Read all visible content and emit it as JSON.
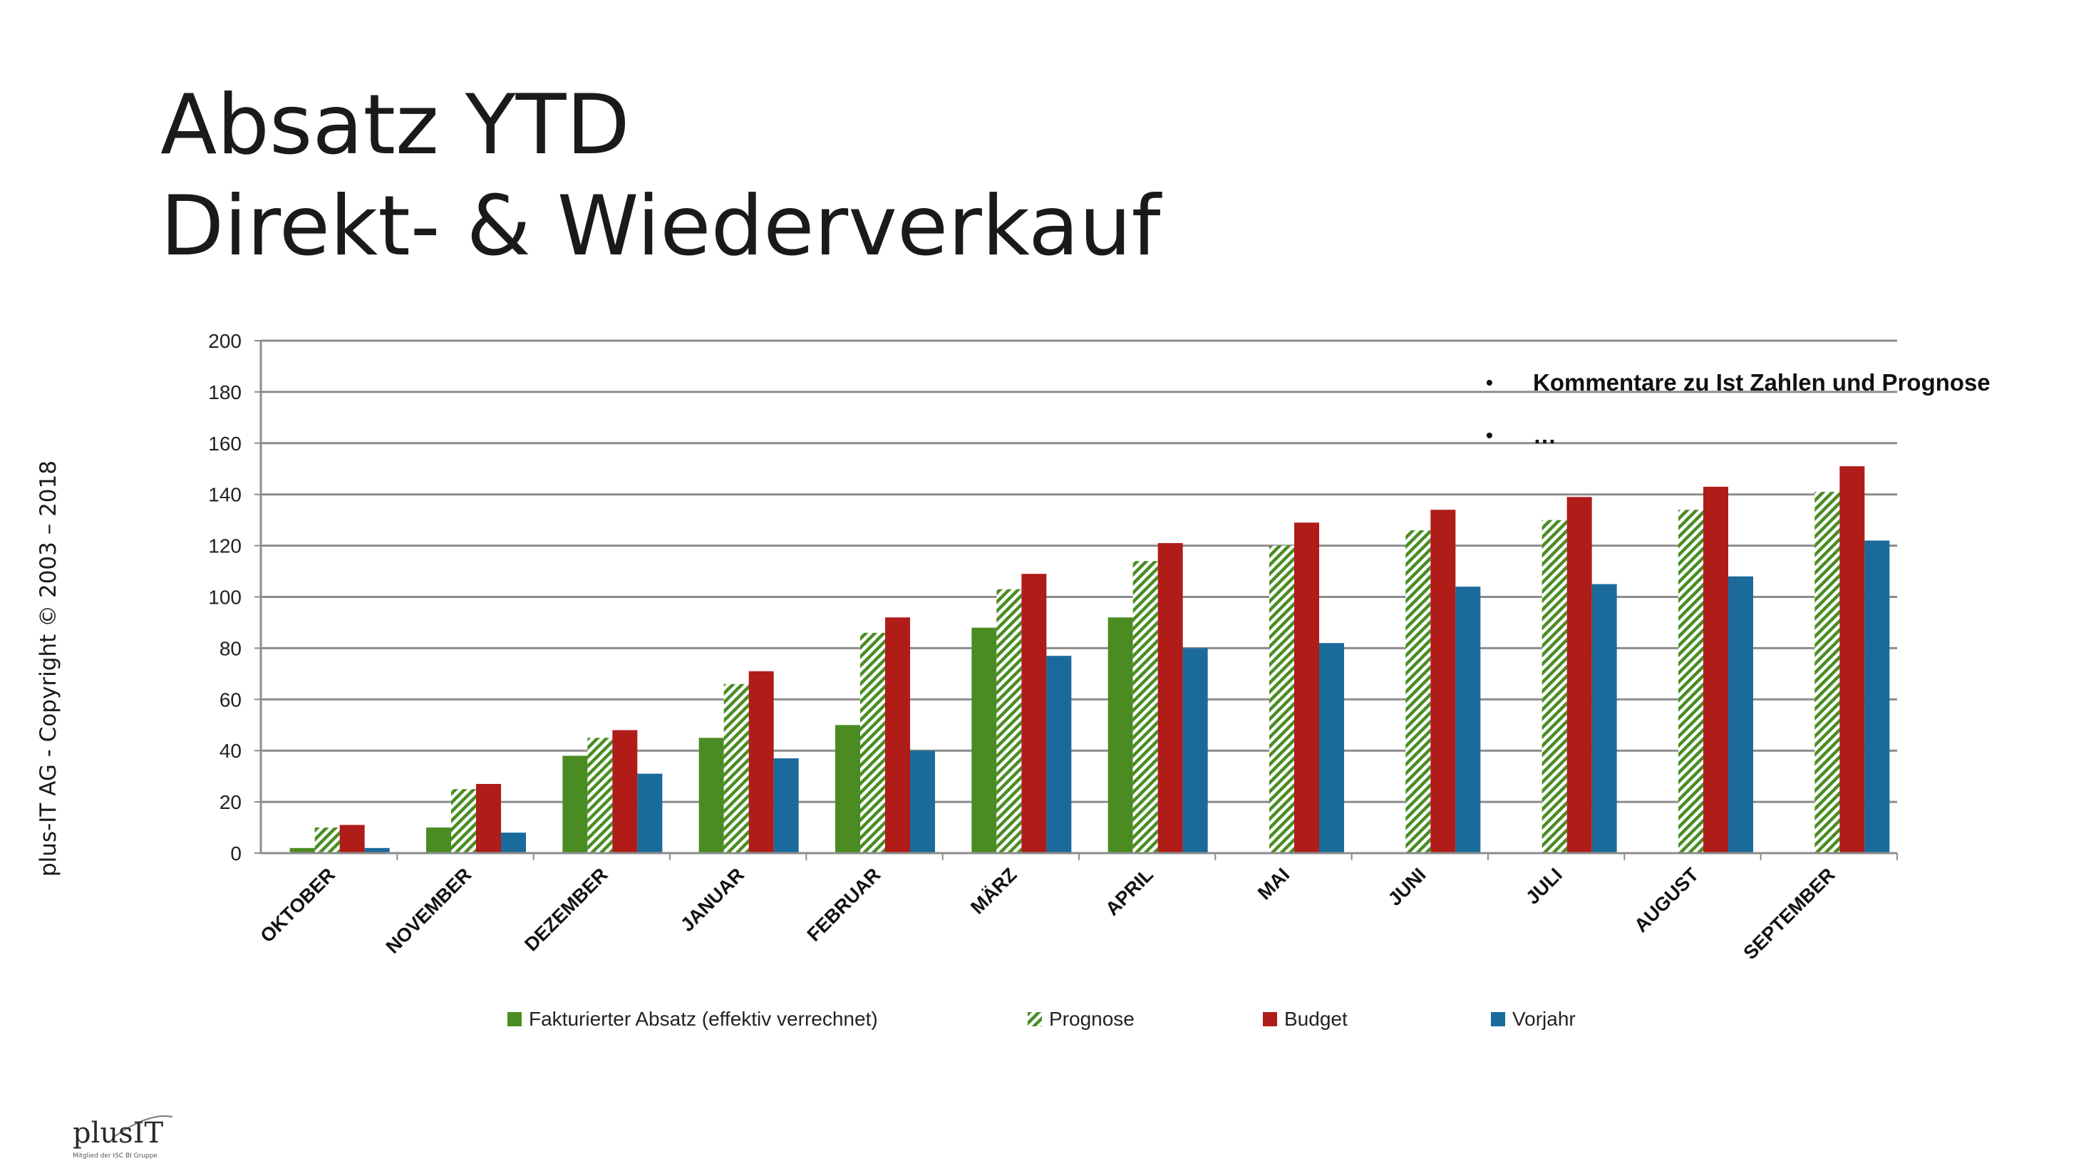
{
  "slide": {
    "title_line1": "Absatz YTD",
    "title_line2": "Direkt- & Wiederverkauf",
    "copyright": "plus-IT AG - Copyright © 2003 – 2018"
  },
  "comments": {
    "items": [
      "Kommentare zu Ist Zahlen und Prognose",
      "…"
    ]
  },
  "logo": {
    "name": "plusIT",
    "tagline": "Mitglied der ISC BI Gruppe"
  },
  "colors": {
    "fakturiert": "#4a8c22",
    "prognose": "#4a8c22",
    "budget": "#b01c18",
    "vorjahr": "#1a6b9c",
    "gridline": "#8c8c8c"
  },
  "chart_data": {
    "type": "bar",
    "title": "",
    "xlabel": "",
    "ylabel": "",
    "ylim": [
      0,
      200
    ],
    "yticks": [
      0,
      20,
      40,
      60,
      80,
      100,
      120,
      140,
      160,
      180,
      200
    ],
    "grid": true,
    "legend_position": "bottom",
    "categories": [
      "OKTOBER",
      "NOVEMBER",
      "DEZEMBER",
      "JANUAR",
      "FEBRUAR",
      "MÄRZ",
      "APRIL",
      "MAI",
      "JUNI",
      "JULI",
      "AUGUST",
      "SEPTEMBER"
    ],
    "series": [
      {
        "name": "Fakturierter Absatz (effektiv verrechnet)",
        "style": "solid",
        "color": "#4a8c22",
        "values": [
          2,
          10,
          38,
          45,
          50,
          88,
          92,
          null,
          null,
          null,
          null,
          null
        ]
      },
      {
        "name": "Prognose",
        "style": "hatched",
        "color": "#4a8c22",
        "values": [
          10,
          25,
          45,
          66,
          86,
          103,
          114,
          120,
          126,
          130,
          134,
          141
        ]
      },
      {
        "name": "Budget",
        "style": "solid",
        "color": "#b01c18",
        "values": [
          11,
          27,
          48,
          71,
          92,
          109,
          121,
          129,
          134,
          139,
          143,
          151
        ]
      },
      {
        "name": "Vorjahr",
        "style": "solid",
        "color": "#1a6b9c",
        "values": [
          2,
          8,
          31,
          37,
          40,
          77,
          80,
          82,
          104,
          105,
          108,
          122
        ]
      }
    ]
  }
}
